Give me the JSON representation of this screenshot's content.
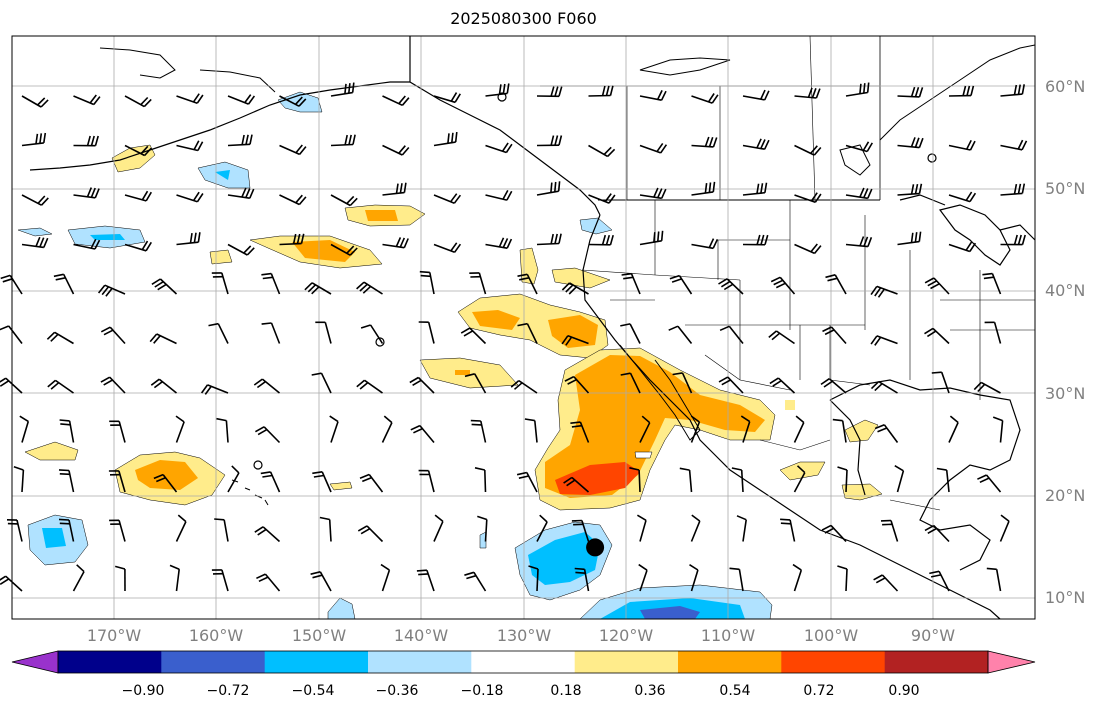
{
  "title": "2025080300 F060",
  "lat_labels": [
    "60°N",
    "50°N",
    "40°N",
    "30°N",
    "20°N",
    "10°N"
  ],
  "lon_labels": [
    "170°W",
    "160°W",
    "150°W",
    "140°W",
    "130°W",
    "120°W",
    "110°W",
    "100°W",
    "90°W"
  ],
  "colorbar": {
    "tick_labels": [
      "−0.90",
      "−0.72",
      "−0.54",
      "−0.36",
      "−0.18",
      "0.18",
      "0.36",
      "0.54",
      "0.72",
      "0.90"
    ],
    "colors": [
      "#9932cc",
      "#00008b",
      "#3a5fcd",
      "#00bfff",
      "#b0e2ff",
      "#ffffff",
      "#ffec8b",
      "#ffa500",
      "#ff4500",
      "#b22222",
      "#ff82ab"
    ]
  },
  "map": {
    "lon_range": [
      -180,
      -80
    ],
    "lat_range": [
      8,
      65
    ],
    "marker": {
      "lon": -123,
      "lat": 15,
      "color": "#000000"
    }
  }
}
